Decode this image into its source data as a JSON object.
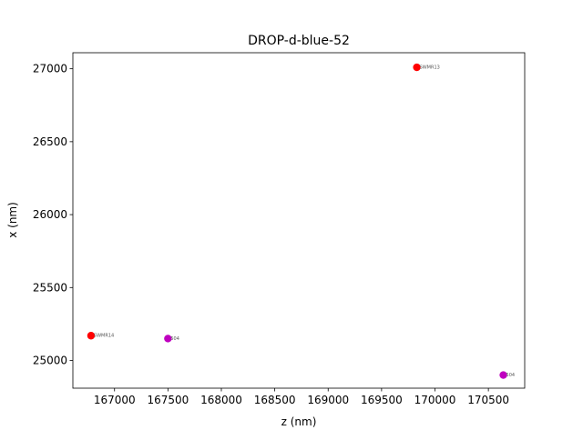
{
  "chart_data": {
    "type": "scatter",
    "title": "DROP-d-blue-52",
    "xlabel": "z (nm)",
    "ylabel": "x (nm)",
    "xlim": [
      166610,
      170840
    ],
    "ylim": [
      24810,
      27110
    ],
    "xticks": [
      167000,
      167500,
      168000,
      168500,
      169000,
      169500,
      170000,
      170500
    ],
    "yticks": [
      25000,
      25500,
      26000,
      26500,
      27000
    ],
    "grid": false,
    "points": [
      {
        "label": "SWMR13",
        "x": 169830,
        "y": 27010,
        "color": "#ff0000"
      },
      {
        "label": "SWMR14",
        "x": 166780,
        "y": 25170,
        "color": "#ff0000"
      },
      {
        "label": "504",
        "x": 167500,
        "y": 25150,
        "color": "#bf00bf"
      },
      {
        "label": "504",
        "x": 170640,
        "y": 24900,
        "color": "#bf00bf"
      }
    ]
  }
}
